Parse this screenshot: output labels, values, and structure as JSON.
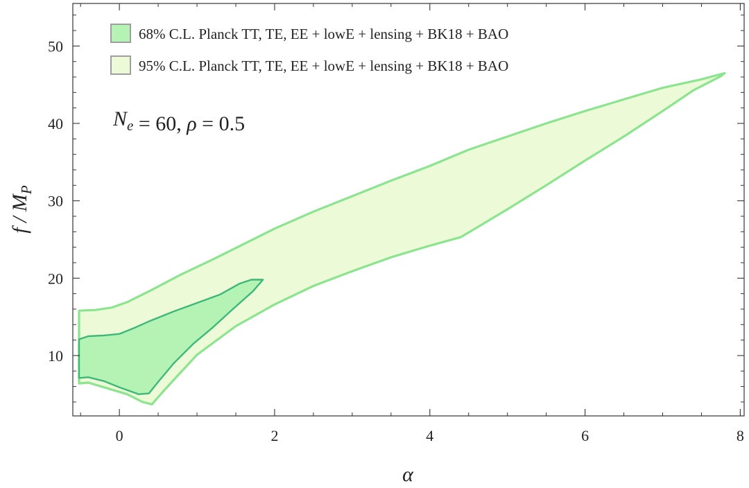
{
  "chart_data": {
    "type": "area",
    "xlabel": "α",
    "ylabel": "f / M_P",
    "xlim": [
      -0.6,
      8.05
    ],
    "ylim": [
      2.2,
      55.5
    ],
    "x_ticks": [
      0,
      2,
      4,
      6,
      8
    ],
    "y_ticks": [
      10,
      20,
      30,
      40,
      50
    ],
    "grid": false,
    "legend_position": "top-left",
    "annotation": {
      "parts": [
        {
          "text": "N",
          "italic": true,
          "sub": false
        },
        {
          "text": "e",
          "italic": true,
          "sub": true
        },
        {
          "text": " = 60, ",
          "italic": false,
          "sub": false
        },
        {
          "text": "ρ",
          "italic": true,
          "sub": false
        },
        {
          "text": " = 0.5",
          "italic": false,
          "sub": false
        }
      ]
    },
    "colors": {
      "fill_68": "#b4f3b4",
      "edge_68": "#3db879",
      "fill_95": "#ecfad8",
      "edge_95": "#8be48e",
      "legend_border": "#9e9e9e",
      "axis": "#333333"
    },
    "series": [
      {
        "name": "68% C.L. Planck TT, TE, EE + lowE + lensing + BK18 + BAO",
        "role": "inner",
        "boundary": [
          [
            -0.52,
            12.1
          ],
          [
            -0.4,
            12.5
          ],
          [
            -0.2,
            12.6
          ],
          [
            0.0,
            12.8
          ],
          [
            0.2,
            13.6
          ],
          [
            0.4,
            14.5
          ],
          [
            0.7,
            15.7
          ],
          [
            1.0,
            16.8
          ],
          [
            1.3,
            17.9
          ],
          [
            1.55,
            19.3
          ],
          [
            1.7,
            19.8
          ],
          [
            1.85,
            19.8
          ],
          [
            1.72,
            18.3
          ],
          [
            1.45,
            15.9
          ],
          [
            1.2,
            13.6
          ],
          [
            0.95,
            11.5
          ],
          [
            0.7,
            9.0
          ],
          [
            0.5,
            6.6
          ],
          [
            0.38,
            5.1
          ],
          [
            0.25,
            5.0
          ],
          [
            0.0,
            5.9
          ],
          [
            -0.2,
            6.7
          ],
          [
            -0.4,
            7.2
          ],
          [
            -0.52,
            7.1
          ]
        ]
      },
      {
        "name": "95% C.L. Planck TT, TE, EE + lowE + lensing + BK18 + BAO",
        "role": "outer",
        "boundary": [
          [
            -0.52,
            15.8
          ],
          [
            -0.3,
            15.9
          ],
          [
            -0.1,
            16.2
          ],
          [
            0.1,
            16.9
          ],
          [
            0.4,
            18.4
          ],
          [
            0.8,
            20.5
          ],
          [
            1.2,
            22.4
          ],
          [
            1.6,
            24.4
          ],
          [
            2.0,
            26.4
          ],
          [
            2.5,
            28.6
          ],
          [
            3.0,
            30.6
          ],
          [
            3.5,
            32.6
          ],
          [
            4.0,
            34.5
          ],
          [
            4.5,
            36.6
          ],
          [
            5.0,
            38.3
          ],
          [
            5.5,
            40.0
          ],
          [
            6.0,
            41.6
          ],
          [
            6.5,
            43.1
          ],
          [
            7.0,
            44.6
          ],
          [
            7.5,
            45.7
          ],
          [
            7.8,
            46.5
          ],
          [
            7.75,
            46.1
          ],
          [
            7.4,
            44.3
          ],
          [
            7.0,
            41.6
          ],
          [
            6.5,
            38.3
          ],
          [
            6.0,
            35.2
          ],
          [
            5.5,
            32.0
          ],
          [
            5.0,
            28.9
          ],
          [
            4.4,
            25.3
          ],
          [
            4.0,
            24.2
          ],
          [
            3.5,
            22.7
          ],
          [
            3.0,
            20.9
          ],
          [
            2.5,
            19.0
          ],
          [
            2.0,
            16.6
          ],
          [
            1.5,
            13.8
          ],
          [
            1.0,
            10.1
          ],
          [
            0.75,
            7.4
          ],
          [
            0.55,
            5.2
          ],
          [
            0.42,
            3.7
          ],
          [
            0.3,
            4.0
          ],
          [
            0.1,
            5.0
          ],
          [
            -0.2,
            5.9
          ],
          [
            -0.4,
            6.5
          ],
          [
            -0.52,
            6.4
          ]
        ]
      }
    ]
  }
}
